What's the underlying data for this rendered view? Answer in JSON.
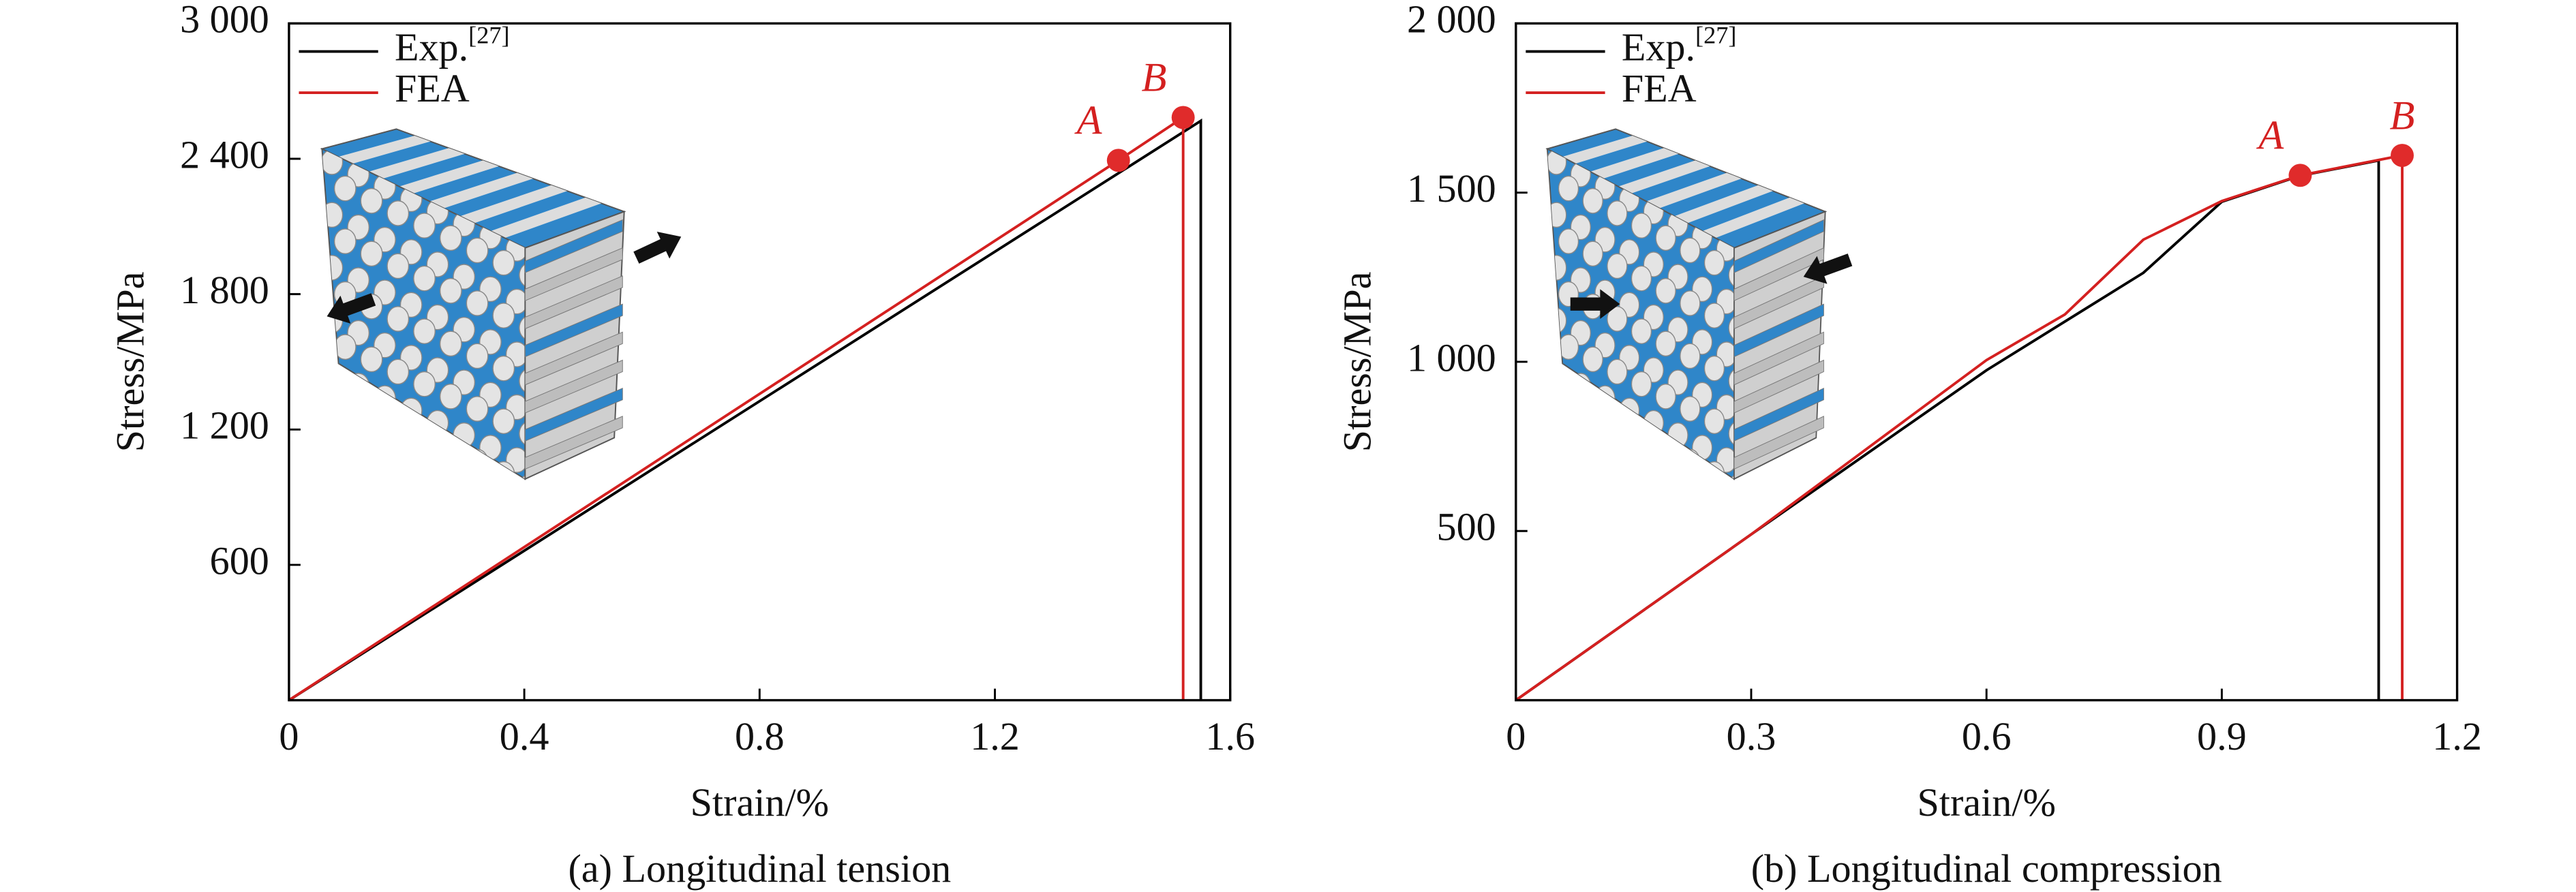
{
  "chart_data": [
    {
      "type": "line",
      "xlabel": "Strain/%",
      "ylabel": "Stress/MPa",
      "caption": "(a) Longitudinal tension",
      "legend_position": "upper left",
      "legend_ref": "[27]",
      "xlim": [
        0,
        1.6
      ],
      "ylim": [
        0,
        3000
      ],
      "xticks": [
        0,
        0.4,
        0.8,
        1.2,
        1.6
      ],
      "yticks": [
        600,
        {
          "value": 1200,
          "label": "1 200"
        },
        {
          "value": 1800,
          "label": "1 800"
        },
        {
          "value": 2400,
          "label": "2 400"
        },
        {
          "value": 3000,
          "label": "3 000"
        }
      ],
      "series": [
        {
          "name": "Exp.",
          "color": "#000000",
          "x": [
            0,
            1.55,
            1.55
          ],
          "values": [
            0,
            2568,
            0
          ]
        },
        {
          "name": "FEA",
          "color": "#d42020",
          "x": [
            0,
            1.41,
            1.52,
            1.52
          ],
          "values": [
            0,
            2393,
            2583,
            0
          ]
        }
      ],
      "annotations": [
        {
          "text": "A",
          "x": 1.41,
          "y": 2393
        },
        {
          "text": "B",
          "x": 1.52,
          "y": 2583
        }
      ]
    },
    {
      "type": "line",
      "xlabel": "Strain/%",
      "ylabel": "Stress/MPa",
      "caption": "(b) Longitudinal compression",
      "legend_position": "upper left",
      "legend_ref": "[27]",
      "xlim": [
        0,
        1.2
      ],
      "ylim": [
        0,
        2000
      ],
      "xticks": [
        0,
        0.3,
        0.6,
        0.9,
        1.2
      ],
      "yticks": [
        500,
        {
          "value": 1000,
          "label": "1 000"
        },
        {
          "value": 1500,
          "label": "1 500"
        },
        {
          "value": 2000,
          "label": "2 000"
        }
      ],
      "series": [
        {
          "name": "Exp.",
          "color": "#000000",
          "x": [
            0,
            0.3,
            0.6,
            0.8,
            0.9,
            1.0,
            1.1,
            1.1
          ],
          "values": [
            0,
            490,
            975,
            1263,
            1473,
            1550,
            1595,
            0
          ]
        },
        {
          "name": "FEA",
          "color": "#d42020",
          "x": [
            0,
            0.3,
            0.6,
            0.7,
            0.8,
            0.9,
            1.0,
            1.13,
            1.13
          ],
          "values": [
            0,
            490,
            1005,
            1140,
            1361,
            1475,
            1551,
            1610,
            0
          ]
        }
      ],
      "annotations": [
        {
          "text": "A",
          "x": 1.0,
          "y": 1551
        },
        {
          "text": "B",
          "x": 1.13,
          "y": 1610
        }
      ]
    }
  ]
}
